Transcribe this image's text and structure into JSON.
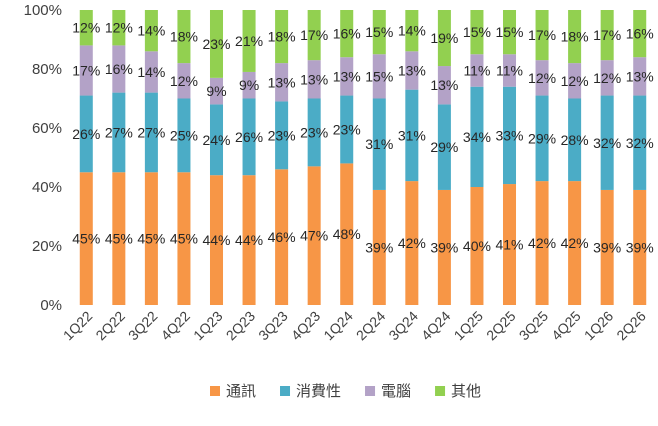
{
  "chart_data": {
    "type": "bar",
    "stacked": true,
    "title": "",
    "xlabel": "",
    "ylabel": "",
    "ylim": [
      0,
      100
    ],
    "y_ticks": [
      "0%",
      "20%",
      "40%",
      "60%",
      "80%",
      "100%"
    ],
    "grid": false,
    "legend_position": "bottom",
    "categories": [
      "1Q22",
      "2Q22",
      "3Q22",
      "4Q22",
      "1Q23",
      "2Q23",
      "3Q23",
      "4Q23",
      "1Q24",
      "2Q24",
      "3Q24",
      "4Q24",
      "1Q25",
      "2Q25",
      "3Q25",
      "4Q25",
      "1Q26",
      "2Q26"
    ],
    "series": [
      {
        "name": "通訊",
        "color": "#F79646",
        "values": [
          45,
          45,
          45,
          45,
          44,
          44,
          46,
          47,
          48,
          39,
          42,
          39,
          40,
          41,
          42,
          42,
          39,
          39
        ]
      },
      {
        "name": "消費性",
        "color": "#4BACC6",
        "values": [
          26,
          27,
          27,
          25,
          24,
          26,
          23,
          23,
          23,
          31,
          31,
          29,
          34,
          33,
          29,
          28,
          32,
          32
        ]
      },
      {
        "name": "電腦",
        "color": "#B3A2C7",
        "values": [
          17,
          16,
          14,
          12,
          9,
          9,
          13,
          13,
          13,
          15,
          13,
          13,
          11,
          11,
          12,
          12,
          12,
          13
        ]
      },
      {
        "name": "其他",
        "color": "#92D050",
        "values": [
          12,
          12,
          14,
          18,
          23,
          21,
          18,
          17,
          16,
          15,
          14,
          19,
          15,
          15,
          17,
          18,
          17,
          16
        ]
      }
    ]
  }
}
